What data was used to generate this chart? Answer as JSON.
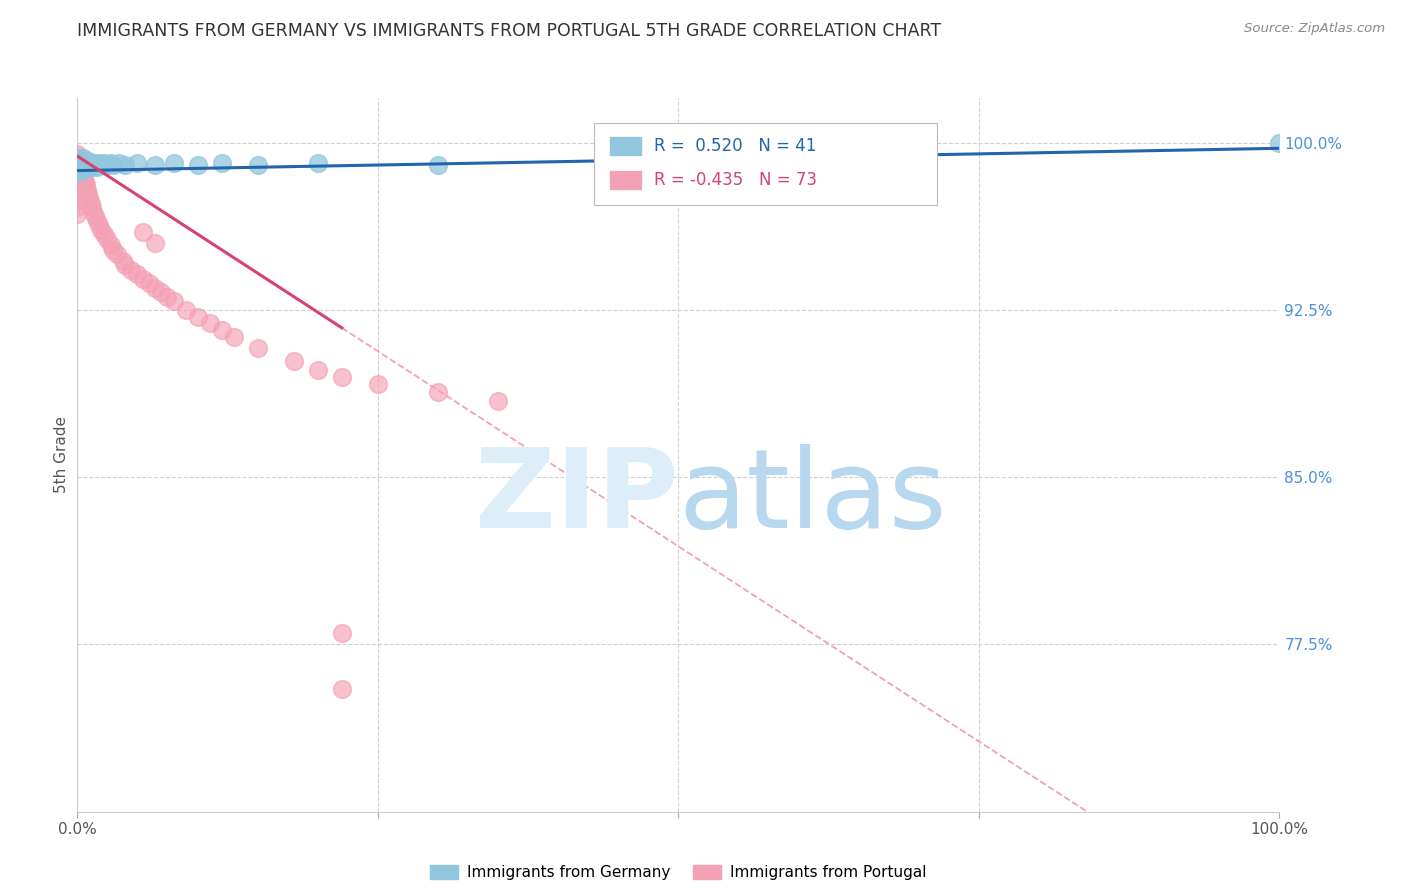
{
  "title": "IMMIGRANTS FROM GERMANY VS IMMIGRANTS FROM PORTUGAL 5TH GRADE CORRELATION CHART",
  "source": "Source: ZipAtlas.com",
  "ylabel": "5th Grade",
  "y_tick_labels": [
    "100.0%",
    "92.5%",
    "85.0%",
    "77.5%"
  ],
  "y_tick_values": [
    1.0,
    0.925,
    0.85,
    0.775
  ],
  "xlim": [
    0.0,
    1.0
  ],
  "ylim": [
    0.7,
    1.02
  ],
  "germany_color": "#92c5de",
  "portugal_color": "#f4a0b5",
  "germany_line_color": "#2166ac",
  "portugal_line_color": "#d6446e",
  "portugal_line_dashed_color": "#f4a0b5",
  "grid_color": "#d0d0d0",
  "legend_R_germany": "R =  0.520",
  "legend_N_germany": "N = 41",
  "legend_R_portugal": "R = -0.435",
  "legend_N_portugal": "N = 73",
  "title_color": "#333333",
  "axis_label_color": "#555555",
  "right_tick_color": "#4a90d9",
  "germany_scatter_x": [
    0.0,
    0.0,
    0.001,
    0.001,
    0.002,
    0.002,
    0.003,
    0.003,
    0.004,
    0.004,
    0.005,
    0.005,
    0.006,
    0.007,
    0.008,
    0.009,
    0.009,
    0.01,
    0.011,
    0.012,
    0.013,
    0.015,
    0.016,
    0.018,
    0.02,
    0.022,
    0.025,
    0.028,
    0.03,
    0.035,
    0.04,
    0.05,
    0.065,
    0.08,
    0.1,
    0.12,
    0.15,
    0.2,
    0.3,
    0.65,
    1.0
  ],
  "germany_scatter_y": [
    0.988,
    0.992,
    0.989,
    0.993,
    0.99,
    0.987,
    0.991,
    0.988,
    0.992,
    0.989,
    0.99,
    0.993,
    0.99,
    0.991,
    0.989,
    0.992,
    0.99,
    0.991,
    0.99,
    0.989,
    0.991,
    0.99,
    0.989,
    0.991,
    0.99,
    0.991,
    0.99,
    0.991,
    0.99,
    0.991,
    0.99,
    0.991,
    0.99,
    0.991,
    0.99,
    0.991,
    0.99,
    0.991,
    0.99,
    0.991,
    1.0
  ],
  "portugal_scatter_x": [
    0.0,
    0.0,
    0.0,
    0.0,
    0.0,
    0.0,
    0.0,
    0.0,
    0.0,
    0.0,
    0.001,
    0.001,
    0.001,
    0.001,
    0.001,
    0.002,
    0.002,
    0.002,
    0.002,
    0.003,
    0.003,
    0.003,
    0.003,
    0.004,
    0.004,
    0.004,
    0.005,
    0.005,
    0.006,
    0.006,
    0.007,
    0.007,
    0.008,
    0.009,
    0.01,
    0.011,
    0.012,
    0.013,
    0.015,
    0.016,
    0.018,
    0.02,
    0.022,
    0.025,
    0.028,
    0.03,
    0.033,
    0.038,
    0.04,
    0.045,
    0.05,
    0.055,
    0.06,
    0.065,
    0.07,
    0.075,
    0.08,
    0.09,
    0.1,
    0.11,
    0.12,
    0.13,
    0.15,
    0.18,
    0.2,
    0.22,
    0.25,
    0.3,
    0.35,
    0.22,
    0.055,
    0.065,
    0.22
  ],
  "portugal_scatter_y": [
    0.995,
    0.992,
    0.989,
    0.986,
    0.983,
    0.98,
    0.977,
    0.974,
    0.971,
    0.968,
    0.993,
    0.99,
    0.987,
    0.984,
    0.981,
    0.991,
    0.988,
    0.985,
    0.982,
    0.989,
    0.986,
    0.983,
    0.98,
    0.987,
    0.984,
    0.981,
    0.985,
    0.982,
    0.983,
    0.98,
    0.981,
    0.978,
    0.979,
    0.977,
    0.975,
    0.973,
    0.971,
    0.969,
    0.967,
    0.965,
    0.963,
    0.961,
    0.959,
    0.957,
    0.954,
    0.952,
    0.95,
    0.947,
    0.945,
    0.943,
    0.941,
    0.939,
    0.937,
    0.935,
    0.933,
    0.931,
    0.929,
    0.925,
    0.922,
    0.919,
    0.916,
    0.913,
    0.908,
    0.902,
    0.898,
    0.895,
    0.892,
    0.888,
    0.884,
    0.755,
    0.96,
    0.955,
    0.78
  ]
}
